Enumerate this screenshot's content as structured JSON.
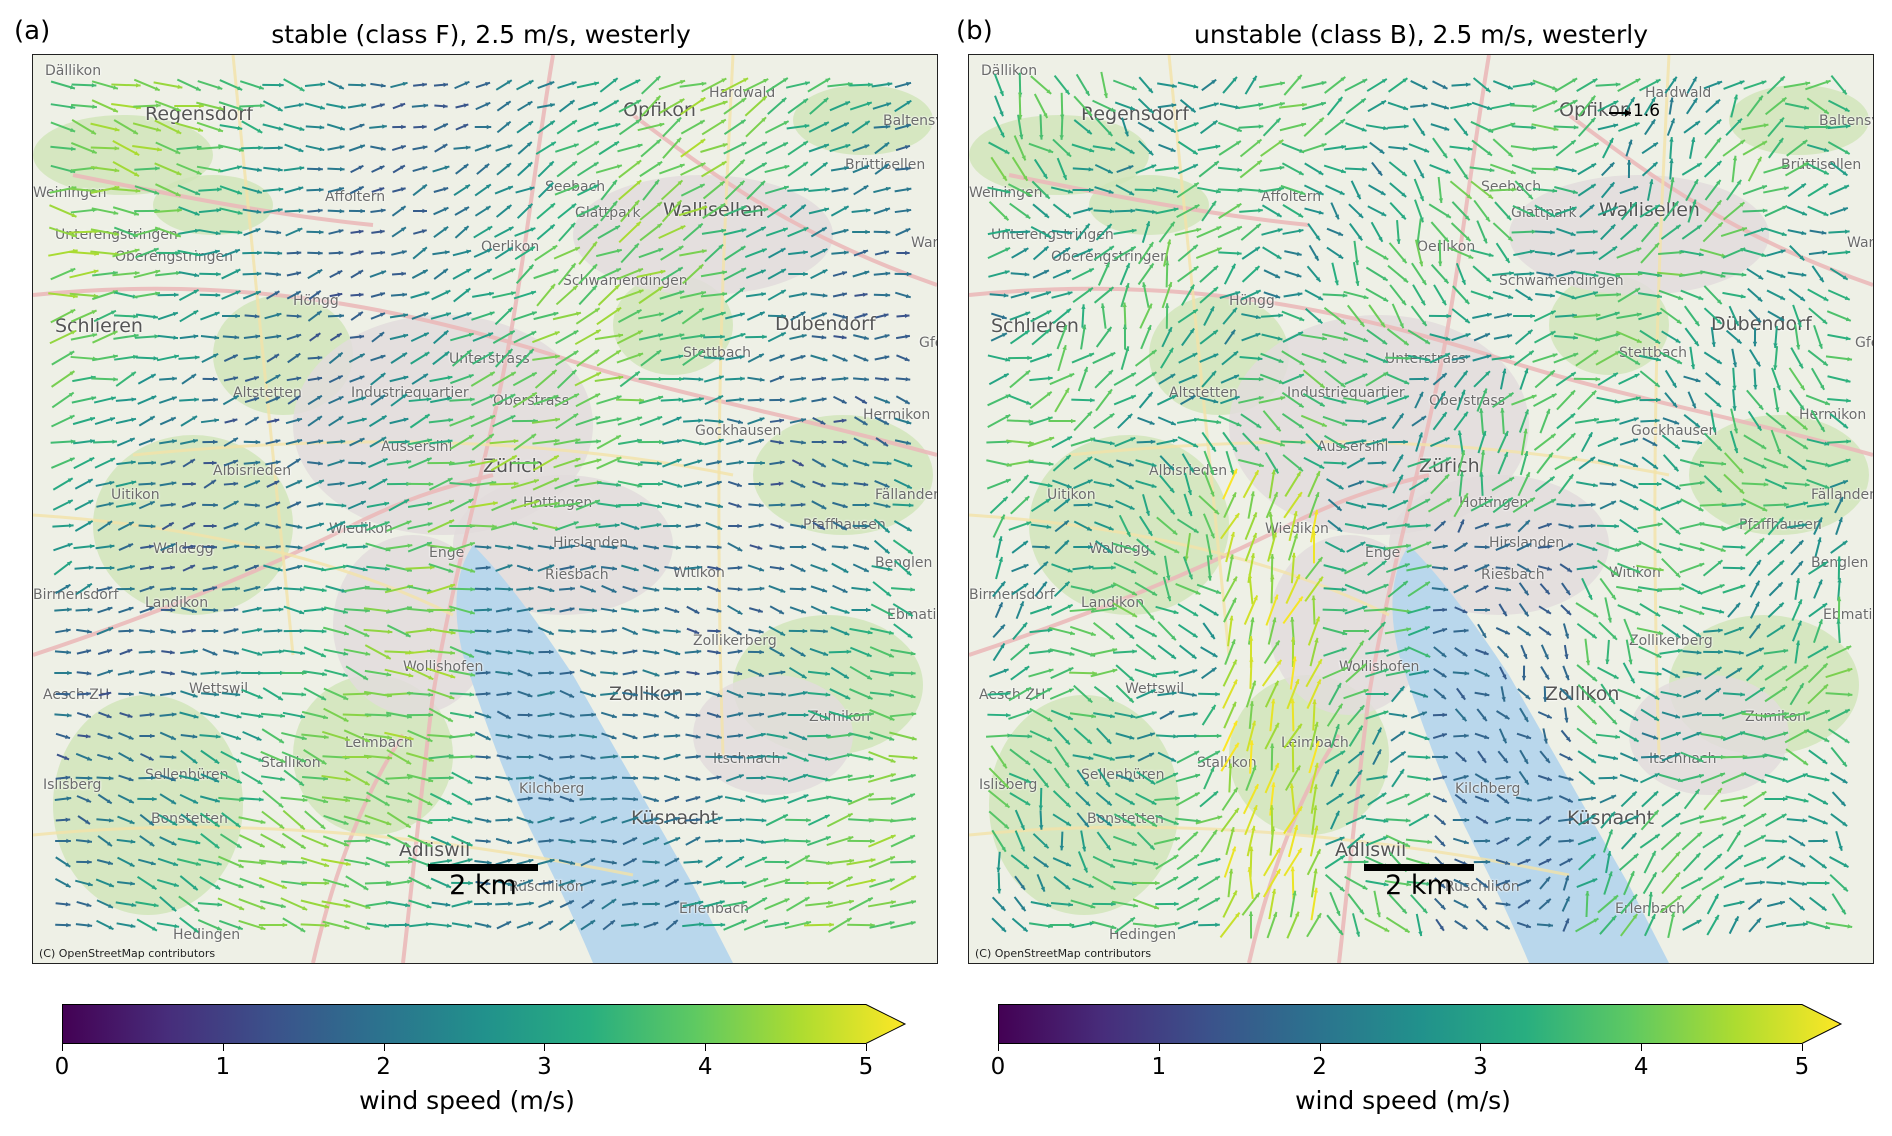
{
  "panels": [
    {
      "letter": "(a)",
      "title": "stable (class F), 2.5 m/s, westerly",
      "mode": "stable",
      "scale_label": "2 km",
      "credit": "(C) OpenStreetMap contributors"
    },
    {
      "letter": "(b)",
      "title": "unstable (class B), 2.5 m/s, westerly",
      "mode": "unstable",
      "scale_label": "2 km",
      "credit": "(C) OpenStreetMap contributors",
      "annotation": "1.6"
    }
  ],
  "places": [
    {
      "name": "Dällikon",
      "big": false
    },
    {
      "name": "Regensdorf",
      "big": true
    },
    {
      "name": "Opfikon",
      "big": true
    },
    {
      "name": "Hardwald",
      "big": false
    },
    {
      "name": "Baltensv",
      "big": false
    },
    {
      "name": "Weiningen",
      "big": false
    },
    {
      "name": "Affoltern",
      "big": false
    },
    {
      "name": "Seebach",
      "big": false
    },
    {
      "name": "Glattpark",
      "big": false
    },
    {
      "name": "Brüttisellen",
      "big": false
    },
    {
      "name": "Unterengstringen",
      "big": false
    },
    {
      "name": "Oberengstringen",
      "big": false
    },
    {
      "name": "Oerlikon",
      "big": false
    },
    {
      "name": "Wallisellen",
      "big": true
    },
    {
      "name": "Schwamendingen",
      "big": false
    },
    {
      "name": "Wan",
      "big": false
    },
    {
      "name": "Höngg",
      "big": false
    },
    {
      "name": "Schlieren",
      "big": true
    },
    {
      "name": "Dübendorf",
      "big": true
    },
    {
      "name": "Gfe",
      "big": false
    },
    {
      "name": "Unterstrass",
      "big": false
    },
    {
      "name": "Stettbach",
      "big": false
    },
    {
      "name": "Altstetten",
      "big": false
    },
    {
      "name": "Industriequartier",
      "big": false
    },
    {
      "name": "Oberstrass",
      "big": false
    },
    {
      "name": "Hermikon",
      "big": false
    },
    {
      "name": "Gockhausen",
      "big": false
    },
    {
      "name": "Aussersihl",
      "big": false
    },
    {
      "name": "Zürich",
      "big": true
    },
    {
      "name": "Albisrieden",
      "big": false
    },
    {
      "name": "Fällanden",
      "big": false
    },
    {
      "name": "Uitikon",
      "big": false
    },
    {
      "name": "Hottingen",
      "big": false
    },
    {
      "name": "Wiedikon",
      "big": false
    },
    {
      "name": "Pfaffhausen",
      "big": false
    },
    {
      "name": "Waldegg",
      "big": false
    },
    {
      "name": "Hirslanden",
      "big": false
    },
    {
      "name": "Enge",
      "big": false
    },
    {
      "name": "Benglen",
      "big": false
    },
    {
      "name": "Riesbach",
      "big": false
    },
    {
      "name": "Witikon",
      "big": false
    },
    {
      "name": "Birmensdorf",
      "big": false
    },
    {
      "name": "Landikon",
      "big": false
    },
    {
      "name": "Ebmatingen",
      "big": false
    },
    {
      "name": "Zollikerberg",
      "big": false
    },
    {
      "name": "Wollishofen",
      "big": false
    },
    {
      "name": "Aesch ZH",
      "big": false
    },
    {
      "name": "Wettswil",
      "big": false
    },
    {
      "name": "Zollikon",
      "big": true
    },
    {
      "name": "Zumikon",
      "big": false
    },
    {
      "name": "Leimbach",
      "big": false
    },
    {
      "name": "Stallikon",
      "big": false
    },
    {
      "name": "Itschnach",
      "big": false
    },
    {
      "name": "Islisberg",
      "big": false
    },
    {
      "name": "Sellenbüren",
      "big": false
    },
    {
      "name": "Kilchberg",
      "big": false
    },
    {
      "name": "Bonstetten",
      "big": false
    },
    {
      "name": "Küsnacht",
      "big": true
    },
    {
      "name": "Adliswil",
      "big": true
    },
    {
      "name": "Rüschlikon",
      "big": false
    },
    {
      "name": "Erlenbach",
      "big": false
    },
    {
      "name": "Hedingen",
      "big": false
    }
  ],
  "colorbar": {
    "label": "wind speed (m/s)",
    "ticks": [
      "0",
      "1",
      "2",
      "3",
      "4",
      "5"
    ],
    "range": [
      0,
      5
    ],
    "extend": "max",
    "colormap": "viridis"
  }
}
